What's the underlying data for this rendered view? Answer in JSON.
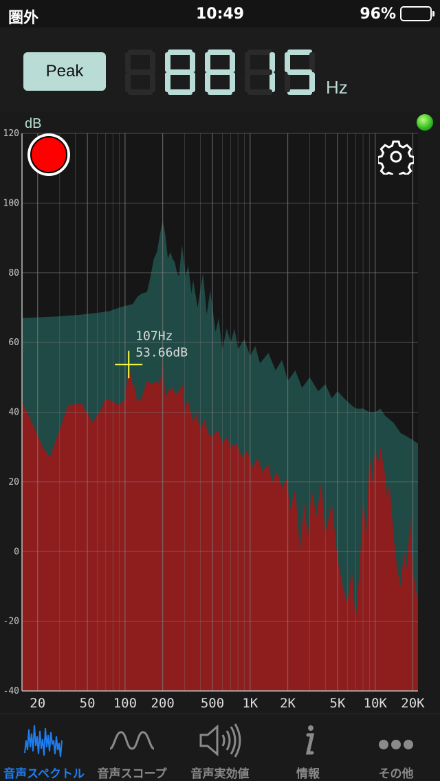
{
  "status_bar": {
    "carrier": "圏外",
    "time": "10:49",
    "battery": "96%"
  },
  "header": {
    "mode_button": "Peak",
    "frequency_digits": "8815",
    "frequency_ghost": "88888",
    "frequency_unit": "Hz",
    "digit_color": "#b9ddd6",
    "ghost_color": "#2a2a2a"
  },
  "chart_data": {
    "type": "area",
    "ylabel": "dB",
    "ylim": [
      -40,
      120
    ],
    "y_ticks": [
      "120",
      "100",
      "80",
      "60",
      "40",
      "20",
      "0",
      "-20",
      "-40"
    ],
    "xlim": [
      15,
      22000
    ],
    "x_scale": "log",
    "x_tick_labels": [
      {
        "freq": 20,
        "label": "20"
      },
      {
        "freq": 50,
        "label": "50"
      },
      {
        "freq": 100,
        "label": "100"
      },
      {
        "freq": 200,
        "label": "200"
      },
      {
        "freq": 500,
        "label": "500"
      },
      {
        "freq": 1000,
        "label": "1K"
      },
      {
        "freq": 2000,
        "label": "2K"
      },
      {
        "freq": 5000,
        "label": "5K"
      },
      {
        "freq": 10000,
        "label": "10K"
      },
      {
        "freq": 20000,
        "label": "20K"
      }
    ],
    "cursor": {
      "freq": 107,
      "db": 53.66,
      "label_freq": "107Hz",
      "label_db": "53.66dB"
    },
    "series": [
      {
        "color": "#1f4a46",
        "points": [
          [
            15,
            67
          ],
          [
            20,
            67.2
          ],
          [
            30,
            67.5
          ],
          [
            45,
            68
          ],
          [
            60,
            68.5
          ],
          [
            75,
            69
          ],
          [
            90,
            70
          ],
          [
            100,
            70.5
          ],
          [
            115,
            71
          ],
          [
            125,
            73
          ],
          [
            135,
            74
          ],
          [
            150,
            74.5
          ],
          [
            160,
            79
          ],
          [
            170,
            84
          ],
          [
            180,
            86
          ],
          [
            190,
            91
          ],
          [
            200,
            95
          ],
          [
            210,
            91
          ],
          [
            220,
            84
          ],
          [
            230,
            86
          ],
          [
            240,
            84
          ],
          [
            250,
            83
          ],
          [
            260,
            80
          ],
          [
            270,
            79
          ],
          [
            285,
            88
          ],
          [
            295,
            84
          ],
          [
            305,
            79
          ],
          [
            320,
            82
          ],
          [
            340,
            74
          ],
          [
            350,
            78
          ],
          [
            380,
            70
          ],
          [
            420,
            80
          ],
          [
            450,
            68
          ],
          [
            480,
            75
          ],
          [
            500,
            70
          ],
          [
            530,
            63
          ],
          [
            560,
            67
          ],
          [
            600,
            58
          ],
          [
            650,
            64
          ],
          [
            700,
            60
          ],
          [
            750,
            64
          ],
          [
            800,
            58
          ],
          [
            900,
            61
          ],
          [
            1000,
            56
          ],
          [
            1100,
            59
          ],
          [
            1200,
            54
          ],
          [
            1400,
            57
          ],
          [
            1600,
            52
          ],
          [
            1800,
            55
          ],
          [
            2000,
            49
          ],
          [
            2300,
            52
          ],
          [
            2600,
            47
          ],
          [
            3000,
            50
          ],
          [
            3500,
            46
          ],
          [
            4000,
            48
          ],
          [
            4500,
            44
          ],
          [
            5000,
            46
          ],
          [
            6000,
            43
          ],
          [
            7000,
            41
          ],
          [
            8000,
            41
          ],
          [
            9000,
            40
          ],
          [
            10000,
            40
          ],
          [
            11000,
            41
          ],
          [
            12000,
            39
          ],
          [
            14000,
            37
          ],
          [
            16000,
            34
          ],
          [
            18000,
            33
          ],
          [
            20000,
            32
          ],
          [
            22000,
            31
          ]
        ]
      },
      {
        "color": "#8e1e1e",
        "points": [
          [
            15,
            43
          ],
          [
            18,
            37
          ],
          [
            22,
            30
          ],
          [
            25,
            27
          ],
          [
            30,
            35
          ],
          [
            35,
            42
          ],
          [
            45,
            42.5
          ],
          [
            55,
            37
          ],
          [
            65,
            41
          ],
          [
            70,
            44
          ],
          [
            80,
            43
          ],
          [
            90,
            42
          ],
          [
            95,
            43
          ],
          [
            100,
            44
          ],
          [
            107,
            53.66
          ],
          [
            115,
            48
          ],
          [
            120,
            47
          ],
          [
            125,
            43
          ],
          [
            135,
            44
          ],
          [
            150,
            49
          ],
          [
            165,
            48
          ],
          [
            180,
            49
          ],
          [
            190,
            48
          ],
          [
            200,
            55
          ],
          [
            210,
            44
          ],
          [
            220,
            46
          ],
          [
            240,
            47
          ],
          [
            255,
            45
          ],
          [
            270,
            46
          ],
          [
            290,
            48
          ],
          [
            300,
            40
          ],
          [
            315,
            44
          ],
          [
            330,
            41
          ],
          [
            350,
            37
          ],
          [
            370,
            40
          ],
          [
            400,
            35
          ],
          [
            430,
            38
          ],
          [
            460,
            34
          ],
          [
            500,
            33
          ],
          [
            550,
            35
          ],
          [
            600,
            31
          ],
          [
            650,
            33
          ],
          [
            700,
            30
          ],
          [
            780,
            31
          ],
          [
            860,
            27
          ],
          [
            950,
            29
          ],
          [
            1050,
            24
          ],
          [
            1150,
            27
          ],
          [
            1250,
            23
          ],
          [
            1400,
            25
          ],
          [
            1500,
            20
          ],
          [
            1650,
            23
          ],
          [
            1800,
            18
          ],
          [
            1950,
            21
          ],
          [
            2100,
            12
          ],
          [
            2300,
            18
          ],
          [
            2500,
            0
          ],
          [
            2700,
            14
          ],
          [
            2900,
            4
          ],
          [
            3100,
            18
          ],
          [
            3400,
            10
          ],
          [
            3700,
            20
          ],
          [
            4000,
            5
          ],
          [
            4500,
            14
          ],
          [
            5000,
            -2
          ],
          [
            5500,
            -10
          ],
          [
            6000,
            -15
          ],
          [
            6500,
            -5
          ],
          [
            7000,
            -20
          ],
          [
            7500,
            -5
          ],
          [
            8000,
            15
          ],
          [
            8500,
            5
          ],
          [
            9000,
            28
          ],
          [
            9500,
            20
          ],
          [
            10000,
            30
          ],
          [
            10500,
            25
          ],
          [
            11000,
            30
          ],
          [
            12000,
            22
          ],
          [
            12500,
            15
          ],
          [
            13000,
            20
          ],
          [
            14000,
            5
          ],
          [
            15000,
            -5
          ],
          [
            16000,
            -10
          ],
          [
            17000,
            0
          ],
          [
            18000,
            -5
          ],
          [
            19000,
            10
          ],
          [
            20000,
            -5
          ],
          [
            21000,
            -10
          ],
          [
            22000,
            -15
          ]
        ]
      }
    ]
  },
  "tabs": [
    {
      "label": "音声スペクトル",
      "icon": "spectrum-icon",
      "active": true
    },
    {
      "label": "音声スコープ",
      "icon": "waveform-icon",
      "active": false
    },
    {
      "label": "音声実効値",
      "icon": "speaker-icon",
      "active": false
    },
    {
      "label": "情報",
      "icon": "info-icon",
      "active": false
    },
    {
      "label": "その他",
      "icon": "more-icon",
      "active": false
    }
  ],
  "colors": {
    "grid": "#7a7a7a",
    "cursor": "#ffff40",
    "accent": "#1e7ef0",
    "inactive": "#8a8a8a",
    "led": "#2fb81f"
  }
}
